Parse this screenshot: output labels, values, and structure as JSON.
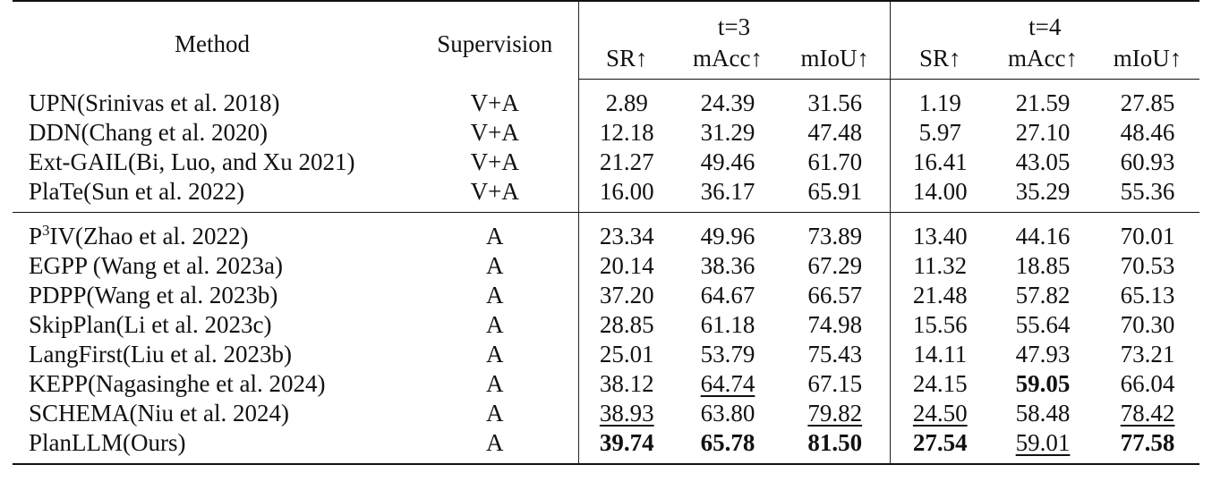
{
  "header": {
    "method": "Method",
    "supervision": "Supervision",
    "group_t3": "t=3",
    "group_t4": "t=4",
    "metrics": [
      "SR↑",
      "mAcc↑",
      "mIoU↑",
      "SR↑",
      "mAcc↑",
      "mIoU↑"
    ]
  },
  "group1": [
    {
      "method": "UPN(Srinivas et al. 2018)",
      "supervision": "V+A",
      "values": [
        "2.89",
        "24.39",
        "31.56",
        "1.19",
        "21.59",
        "27.85"
      ]
    },
    {
      "method": "DDN(Chang et al. 2020)",
      "supervision": "V+A",
      "values": [
        "12.18",
        "31.29",
        "47.48",
        "5.97",
        "27.10",
        "48.46"
      ]
    },
    {
      "method": "Ext-GAIL(Bi, Luo, and Xu 2021)",
      "supervision": "V+A",
      "values": [
        "21.27",
        "49.46",
        "61.70",
        "16.41",
        "43.05",
        "60.93"
      ]
    },
    {
      "method": "PlaTe(Sun et al. 2022)",
      "supervision": "V+A",
      "values": [
        "16.00",
        "36.17",
        "65.91",
        "14.00",
        "35.29",
        "55.36"
      ]
    }
  ],
  "group2": [
    {
      "method_pre": "P",
      "method_sup": "3",
      "method": "IV(Zhao et al. 2022)",
      "supervision": "A",
      "values": [
        "23.34",
        "49.96",
        "73.89",
        "13.40",
        "44.16",
        "70.01"
      ]
    },
    {
      "method": "EGPP (Wang et al. 2023a)",
      "supervision": "A",
      "values": [
        "20.14",
        "38.36",
        "67.29",
        "11.32",
        "18.85",
        "70.53"
      ]
    },
    {
      "method": "PDPP(Wang et al. 2023b)",
      "supervision": "A",
      "values": [
        "37.20",
        "64.67",
        "66.57",
        "21.48",
        "57.82",
        "65.13"
      ]
    },
    {
      "method": "SkipPlan(Li et al. 2023c)",
      "supervision": "A",
      "values": [
        "28.85",
        "61.18",
        "74.98",
        "15.56",
        "55.64",
        "70.30"
      ]
    },
    {
      "method": "LangFirst(Liu et al. 2023b)",
      "supervision": "A",
      "values": [
        "25.01",
        "53.79",
        "75.43",
        "14.11",
        "47.93",
        "73.21"
      ]
    },
    {
      "method": "KEPP(Nagasinghe et al. 2024)",
      "supervision": "A",
      "values": [
        "38.12",
        "64.74",
        "67.15",
        "24.15",
        "59.05",
        "66.04"
      ]
    },
    {
      "method": "SCHEMA(Niu et al. 2024)",
      "supervision": "A",
      "values": [
        "38.93",
        "63.80",
        "79.82",
        "24.50",
        "58.48",
        "78.42"
      ]
    },
    {
      "method": "PlanLLM(Ours)",
      "supervision": "A",
      "values": [
        "39.74",
        "65.78",
        "81.50",
        "27.54",
        "59.01",
        "77.58"
      ]
    }
  ]
}
